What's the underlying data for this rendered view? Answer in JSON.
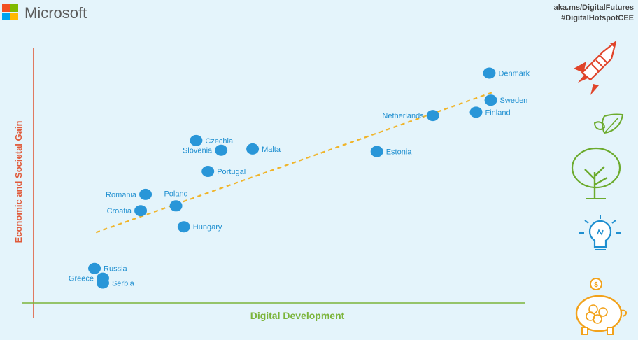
{
  "brand": {
    "name": "Microsoft",
    "logo_colors": [
      "#f25022",
      "#7fba00",
      "#00a4ef",
      "#ffb900"
    ]
  },
  "corner": {
    "line1": "aka.ms/DigitalFutures",
    "line2": "#DigitalHotspotCEE"
  },
  "side_icons": [
    "rocket-icon",
    "tree-icon",
    "lightbulb-icon",
    "piggy-bank-icon"
  ],
  "colors": {
    "point": "#2996d8",
    "label": "#1f8fd0",
    "trend": "#f0b429",
    "y_axis": "#e05a3a",
    "x_axis": "#7bb43a"
  },
  "chart_data": {
    "type": "scatter",
    "title": "",
    "xlabel": "Digital Development",
    "ylabel": "Economic and Societal Gain",
    "xlim": [
      0,
      100
    ],
    "ylim": [
      0,
      100
    ],
    "grid": false,
    "trendline": {
      "x": [
        12.7,
        93.5
      ],
      "y": [
        27.6,
        82.5
      ]
    },
    "points": [
      {
        "name": "Denmark",
        "x": 92.8,
        "y": 90.0,
        "label_side": "right"
      },
      {
        "name": "Sweden",
        "x": 93.1,
        "y": 79.4,
        "label_side": "right"
      },
      {
        "name": "Finland",
        "x": 90.1,
        "y": 74.7,
        "label_side": "right"
      },
      {
        "name": "Netherlands",
        "x": 81.3,
        "y": 73.4,
        "label_side": "left"
      },
      {
        "name": "Estonia",
        "x": 69.9,
        "y": 59.3,
        "label_side": "right"
      },
      {
        "name": "Czechia",
        "x": 33.1,
        "y": 63.6,
        "label_side": "right"
      },
      {
        "name": "Slovenia",
        "x": 38.2,
        "y": 59.8,
        "label_side": "left"
      },
      {
        "name": "Malta",
        "x": 44.6,
        "y": 60.3,
        "label_side": "right"
      },
      {
        "name": "Portugal",
        "x": 35.5,
        "y": 51.5,
        "label_side": "right"
      },
      {
        "name": "Romania",
        "x": 22.8,
        "y": 42.5,
        "label_side": "left"
      },
      {
        "name": "Poland",
        "x": 29.0,
        "y": 38.0,
        "label_side": "above"
      },
      {
        "name": "Croatia",
        "x": 21.8,
        "y": 36.1,
        "label_side": "left"
      },
      {
        "name": "Hungary",
        "x": 30.6,
        "y": 29.8,
        "label_side": "right"
      },
      {
        "name": "Russia",
        "x": 12.4,
        "y": 13.5,
        "label_side": "right"
      },
      {
        "name": "Greece",
        "x": 14.1,
        "y": 9.7,
        "label_side": "left"
      },
      {
        "name": "Serbia",
        "x": 14.1,
        "y": 7.8,
        "label_side": "right"
      }
    ]
  }
}
